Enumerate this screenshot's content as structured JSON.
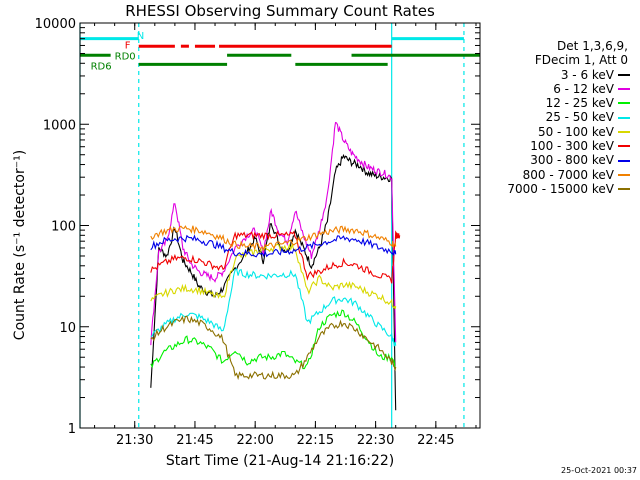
{
  "chart_data": {
    "type": "line",
    "title": "RHESSI Observing Summary Count Rates",
    "xlabel": "Start Time (21-Aug-14 21:16:22)",
    "ylabel": "Count Rate (s⁻¹ detector⁻¹)",
    "ylog": true,
    "ylim": [
      1,
      10000
    ],
    "xlim": [
      "21:16:22",
      "22:56:00"
    ],
    "xticks": [
      "21:30",
      "21:45",
      "22:00",
      "22:15",
      "22:30",
      "22:45"
    ],
    "yticks": [
      "1",
      "10",
      "100",
      "1000",
      "10000"
    ],
    "legend_header": [
      "Det 1,3,6,9,",
      "FDecim 1, Att 0"
    ],
    "legend_position": "right",
    "series": [
      {
        "name": "3 - 6 keV",
        "color": "#000000",
        "x": [
          "21:34",
          "21:36",
          "21:38",
          "21:40",
          "21:42",
          "21:44",
          "21:46",
          "21:48",
          "21:50",
          "21:52",
          "21:55",
          "21:58",
          "22:00",
          "22:02",
          "22:04",
          "22:06",
          "22:08",
          "22:10",
          "22:12",
          "22:14",
          "22:16",
          "22:18",
          "22:20",
          "22:22",
          "22:24",
          "22:26",
          "22:28",
          "22:30",
          "22:32",
          "22:34",
          "22:35"
        ],
        "y": [
          2.5,
          60,
          50,
          95,
          45,
          35,
          25,
          22,
          20,
          24,
          38,
          55,
          75,
          45,
          110,
          65,
          55,
          90,
          60,
          40,
          60,
          110,
          340,
          480,
          420,
          390,
          330,
          310,
          300,
          290,
          1.5
        ]
      },
      {
        "name": "6 - 12 keV",
        "color": "#e000e0",
        "x": [
          "21:34",
          "21:36",
          "21:38",
          "21:40",
          "21:42",
          "21:44",
          "21:46",
          "21:48",
          "21:50",
          "21:52",
          "21:55",
          "21:58",
          "22:00",
          "22:02",
          "22:04",
          "22:06",
          "22:08",
          "22:10",
          "22:12",
          "22:14",
          "22:16",
          "22:18",
          "22:20",
          "22:22",
          "22:24",
          "22:26",
          "22:28",
          "22:30",
          "22:32",
          "22:34",
          "22:35"
        ],
        "y": [
          7,
          55,
          70,
          170,
          60,
          42,
          35,
          32,
          30,
          35,
          60,
          80,
          90,
          55,
          140,
          85,
          70,
          140,
          80,
          50,
          90,
          200,
          1050,
          700,
          520,
          440,
          380,
          350,
          330,
          300,
          7
        ]
      },
      {
        "name": "12 - 25 keV",
        "color": "#00f000",
        "x": [
          "21:34",
          "21:37",
          "21:40",
          "21:43",
          "21:46",
          "21:49",
          "21:52",
          "21:55",
          "21:58",
          "22:01",
          "22:04",
          "22:07",
          "22:10",
          "22:13",
          "22:16",
          "22:19",
          "22:22",
          "22:25",
          "22:28",
          "22:31",
          "22:34",
          "22:35"
        ],
        "y": [
          4,
          5.5,
          6.5,
          7.5,
          7,
          6,
          4.5,
          6,
          4.5,
          5,
          5,
          5.5,
          4.5,
          4,
          10,
          13,
          14,
          11,
          7.5,
          5,
          5,
          4
        ]
      },
      {
        "name": "25 - 50 keV",
        "color": "#00e8e8",
        "x": [
          "21:34",
          "21:37",
          "21:40",
          "21:43",
          "21:46",
          "21:49",
          "21:52",
          "21:55",
          "21:58",
          "22:01",
          "22:04",
          "22:07",
          "22:10",
          "22:13",
          "22:16",
          "22:19",
          "22:22",
          "22:25",
          "22:28",
          "22:31",
          "22:34",
          "22:35"
        ],
        "y": [
          8,
          10,
          12,
          13.5,
          12.5,
          11,
          9,
          35,
          33,
          32,
          32,
          33,
          33,
          11,
          14,
          18,
          19,
          17,
          13,
          10,
          8,
          6.5
        ]
      },
      {
        "name": "50 - 100 keV",
        "color": "#d8d800",
        "x": [
          "21:34",
          "21:37",
          "21:40",
          "21:43",
          "21:46",
          "21:49",
          "21:52",
          "21:55",
          "21:58",
          "22:01",
          "22:04",
          "22:07",
          "22:10",
          "22:13",
          "22:16",
          "22:19",
          "22:22",
          "22:25",
          "22:28",
          "22:31",
          "22:34",
          "22:35"
        ],
        "y": [
          18,
          21,
          23,
          24,
          23,
          21,
          19,
          48,
          52,
          56,
          60,
          62,
          60,
          22,
          30,
          24,
          26,
          25,
          22,
          20,
          17,
          16
        ]
      },
      {
        "name": "100 - 300 keV",
        "color": "#f00000",
        "x": [
          "21:34",
          "21:37",
          "21:40",
          "21:43",
          "21:46",
          "21:49",
          "21:52",
          "21:55",
          "21:58",
          "22:01",
          "22:04",
          "22:07",
          "22:10",
          "22:13",
          "22:16",
          "22:19",
          "22:22",
          "22:25",
          "22:28",
          "22:31",
          "22:34",
          "22:35",
          "22:36"
        ],
        "y": [
          36,
          42,
          47,
          48,
          45,
          41,
          37,
          80,
          80,
          80,
          80,
          80,
          80,
          32,
          35,
          40,
          43,
          41,
          36,
          32,
          29,
          80,
          80
        ]
      },
      {
        "name": "300 - 800 keV",
        "color": "#0000e8",
        "x": [
          "21:34",
          "21:37",
          "21:40",
          "21:43",
          "21:46",
          "21:49",
          "21:52",
          "21:55",
          "21:58",
          "22:01",
          "22:04",
          "22:07",
          "22:10",
          "22:13",
          "22:16",
          "22:19",
          "22:22",
          "22:25",
          "22:28",
          "22:31",
          "22:34",
          "22:35"
        ],
        "y": [
          62,
          70,
          74,
          75,
          72,
          67,
          60,
          54,
          53,
          52,
          53,
          55,
          57,
          61,
          66,
          71,
          75,
          73,
          67,
          60,
          56,
          52
        ]
      },
      {
        "name": "800 - 7000 keV",
        "color": "#f08000",
        "x": [
          "21:34",
          "21:37",
          "21:40",
          "21:43",
          "21:46",
          "21:49",
          "21:52",
          "21:55",
          "21:58",
          "22:01",
          "22:04",
          "22:07",
          "22:10",
          "22:13",
          "22:16",
          "22:19",
          "22:22",
          "22:25",
          "22:28",
          "22:31",
          "22:34",
          "22:35"
        ],
        "y": [
          78,
          87,
          92,
          94,
          90,
          83,
          74,
          65,
          62,
          62,
          63,
          66,
          70,
          76,
          83,
          88,
          92,
          90,
          83,
          75,
          68,
          62
        ]
      },
      {
        "name": "7000 - 15000 keV",
        "color": "#8b7000",
        "x": [
          "21:34",
          "21:37",
          "21:40",
          "21:43",
          "21:46",
          "21:49",
          "21:52",
          "21:55",
          "21:58",
          "22:01",
          "22:04",
          "22:07",
          "22:10",
          "22:13",
          "22:16",
          "22:19",
          "22:22",
          "22:25",
          "22:28",
          "22:31",
          "22:34",
          "22:35"
        ],
        "y": [
          7.5,
          9.5,
          11,
          12,
          11,
          9.5,
          7.5,
          3.3,
          3.3,
          3.3,
          3.3,
          3.3,
          3.3,
          5,
          8,
          10,
          11,
          9.5,
          7.5,
          6,
          4.5,
          4
        ]
      }
    ],
    "status_bars": [
      {
        "label": "N",
        "color": "#00e8e8",
        "level": 7000,
        "segments": [
          [
            "21:16:22",
            "21:31"
          ],
          [
            "22:34",
            "22:52"
          ]
        ]
      },
      {
        "label": "F",
        "color": "#f00000",
        "level": 5900,
        "segments": [
          [
            "21:31",
            "21:40"
          ],
          [
            "21:41:30",
            "21:43:30"
          ],
          [
            "21:45",
            "21:50"
          ],
          [
            "21:51",
            "22:34"
          ]
        ]
      },
      {
        "label": "RD0",
        "color": "#008000",
        "level": 4800,
        "segments": [
          [
            "21:16:22",
            "21:24"
          ],
          [
            "21:53",
            "22:09"
          ],
          [
            "22:24",
            "22:56"
          ]
        ]
      },
      {
        "label": "RD6",
        "color": "#008000",
        "level": 3900,
        "segments": [
          [
            "21:31",
            "21:53"
          ],
          [
            "22:10",
            "22:33"
          ]
        ]
      }
    ],
    "vertical_markers": [
      {
        "time": "21:16:22",
        "color": "#00e8e8",
        "style": "solid"
      },
      {
        "time": "21:31",
        "color": "#00e8e8",
        "style": "dashed"
      },
      {
        "time": "22:34",
        "color": "#00e8e8",
        "style": "solid"
      },
      {
        "time": "22:52",
        "color": "#00e8e8",
        "style": "dashed"
      }
    ]
  },
  "timestamp": "25-Oct-2021 00:37"
}
